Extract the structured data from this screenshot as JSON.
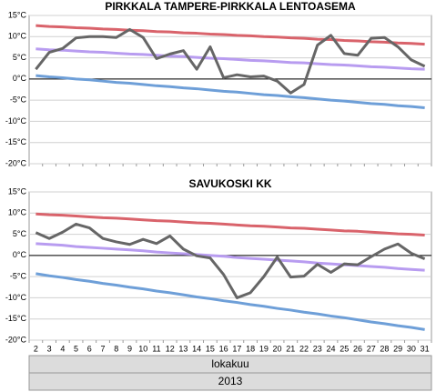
{
  "chart_data": [
    {
      "type": "line",
      "title": "PIRKKALA TAMPERE-PIRKKALA LENTOASEMA",
      "ylim": [
        -20,
        15
      ],
      "yticks": [
        {
          "value": 15,
          "label": "15°C"
        },
        {
          "value": 10,
          "label": "10°C"
        },
        {
          "value": 5,
          "label": "5°C"
        },
        {
          "value": 0,
          "label": "0°C"
        },
        {
          "value": -5,
          "label": "-5°C"
        },
        {
          "value": -10,
          "label": "-10°C"
        },
        {
          "value": -15,
          "label": "-15°C"
        },
        {
          "value": -20,
          "label": "-20°C"
        }
      ],
      "grid": true,
      "series": [
        {
          "color": "#d9636b",
          "values": [
            12.6,
            12.4,
            12.3,
            12.1,
            12.0,
            11.8,
            11.7,
            11.5,
            11.4,
            11.2,
            11.1,
            10.9,
            10.8,
            10.6,
            10.5,
            10.3,
            10.2,
            10.0,
            9.9,
            9.7,
            9.6,
            9.4,
            9.3,
            9.1,
            9.0,
            8.8,
            8.7,
            8.5,
            8.4,
            8.2
          ]
        },
        {
          "color": "#b89cf0",
          "values": [
            7.1,
            6.9,
            6.8,
            6.6,
            6.4,
            6.3,
            6.1,
            5.9,
            5.8,
            5.6,
            5.4,
            5.3,
            5.1,
            4.9,
            4.8,
            4.6,
            4.4,
            4.3,
            4.1,
            3.9,
            3.8,
            3.6,
            3.4,
            3.3,
            3.1,
            2.9,
            2.8,
            2.6,
            2.4,
            2.3
          ]
        },
        {
          "color": "#6e9fd8",
          "values": [
            0.8,
            0.5,
            0.3,
            0.0,
            -0.2,
            -0.5,
            -0.8,
            -1.0,
            -1.3,
            -1.6,
            -1.8,
            -2.1,
            -2.3,
            -2.6,
            -2.9,
            -3.1,
            -3.4,
            -3.7,
            -3.9,
            -4.2,
            -4.4,
            -4.7,
            -5.0,
            -5.2,
            -5.5,
            -5.8,
            -6.0,
            -6.3,
            -6.5,
            -6.8
          ]
        },
        {
          "color": "#666666",
          "values": [
            2.3,
            6.3,
            7.2,
            9.7,
            10.0,
            10.0,
            9.8,
            11.7,
            9.8,
            4.8,
            5.9,
            6.7,
            2.3,
            7.6,
            0.3,
            1.0,
            0.5,
            0.7,
            -0.5,
            -3.3,
            -1.3,
            8.0,
            10.3,
            6.0,
            5.6,
            9.6,
            9.8,
            7.6,
            4.5,
            3.0
          ]
        }
      ]
    },
    {
      "type": "line",
      "title": "SAVUKOSKI KK",
      "ylim": [
        -20,
        15
      ],
      "yticks": [
        {
          "value": 15,
          "label": "15°C"
        },
        {
          "value": 10,
          "label": "10°C"
        },
        {
          "value": 5,
          "label": "5°C"
        },
        {
          "value": 0,
          "label": "0°C"
        },
        {
          "value": -5,
          "label": "-5°C"
        },
        {
          "value": -10,
          "label": "-10°C"
        },
        {
          "value": -15,
          "label": "-15°C"
        },
        {
          "value": -20,
          "label": "-20°C"
        }
      ],
      "grid": true,
      "categories": [
        "2",
        "3",
        "4",
        "5",
        "6",
        "7",
        "8",
        "9",
        "10",
        "11",
        "12",
        "13",
        "14",
        "15",
        "16",
        "17",
        "18",
        "19",
        "20",
        "21",
        "22",
        "23",
        "24",
        "25",
        "26",
        "27",
        "28",
        "29",
        "30",
        "31"
      ],
      "xlabel": "lokakuu",
      "year": "2013",
      "series": [
        {
          "color": "#d9636b",
          "values": [
            9.8,
            9.6,
            9.5,
            9.3,
            9.1,
            8.9,
            8.8,
            8.6,
            8.4,
            8.2,
            8.1,
            7.9,
            7.7,
            7.6,
            7.4,
            7.2,
            7.0,
            6.9,
            6.7,
            6.5,
            6.4,
            6.2,
            6.0,
            5.8,
            5.7,
            5.5,
            5.3,
            5.1,
            5.0,
            4.8
          ]
        },
        {
          "color": "#b89cf0",
          "values": [
            2.8,
            2.6,
            2.4,
            2.1,
            1.9,
            1.7,
            1.5,
            1.3,
            1.1,
            0.8,
            0.6,
            0.4,
            0.2,
            0.0,
            -0.2,
            -0.5,
            -0.7,
            -0.9,
            -1.1,
            -1.3,
            -1.5,
            -1.8,
            -2.0,
            -2.2,
            -2.4,
            -2.6,
            -2.8,
            -3.1,
            -3.3,
            -3.5
          ]
        },
        {
          "color": "#6e9fd8",
          "values": [
            -4.3,
            -4.8,
            -5.2,
            -5.7,
            -6.1,
            -6.6,
            -7.0,
            -7.5,
            -7.9,
            -8.4,
            -8.8,
            -9.3,
            -9.8,
            -10.2,
            -10.7,
            -11.1,
            -11.6,
            -12.0,
            -12.5,
            -12.9,
            -13.4,
            -13.8,
            -14.3,
            -14.7,
            -15.2,
            -15.7,
            -16.1,
            -16.6,
            -17.0,
            -17.5
          ]
        },
        {
          "color": "#666666",
          "values": [
            5.4,
            4.0,
            5.5,
            7.4,
            6.5,
            4.0,
            3.2,
            2.6,
            3.8,
            2.8,
            4.6,
            1.5,
            -0.1,
            -0.6,
            -4.5,
            -10.0,
            -8.8,
            -5.0,
            -0.4,
            -5.1,
            -4.9,
            -2.1,
            -4.0,
            -2.0,
            -2.2,
            -0.3,
            1.5,
            2.7,
            0.5,
            -0.8
          ]
        }
      ]
    }
  ]
}
